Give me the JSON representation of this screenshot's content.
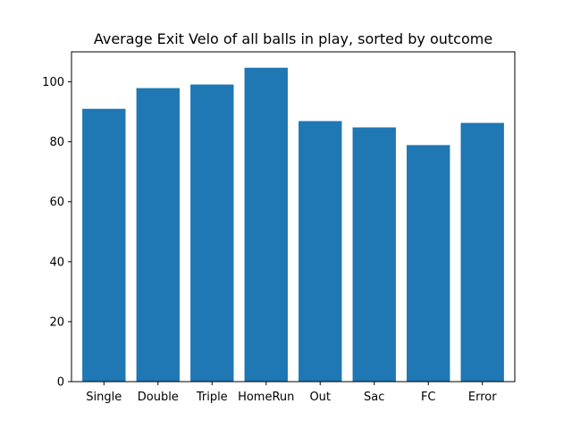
{
  "chart_data": {
    "type": "bar",
    "title": "Average Exit Velo of all balls in play, sorted by outcome",
    "xlabel": "",
    "ylabel": "",
    "categories": [
      "Single",
      "Double",
      "Triple",
      "HomeRun",
      "Out",
      "Sac",
      "FC",
      "Error"
    ],
    "values": [
      91.0,
      97.9,
      99.1,
      104.7,
      86.9,
      84.8,
      78.9,
      86.3
    ],
    "ylim": [
      0,
      110
    ],
    "yticks": [
      0,
      20,
      40,
      60,
      80,
      100
    ],
    "bar_color": "#1f77b4",
    "grid": false,
    "legend": "none"
  }
}
